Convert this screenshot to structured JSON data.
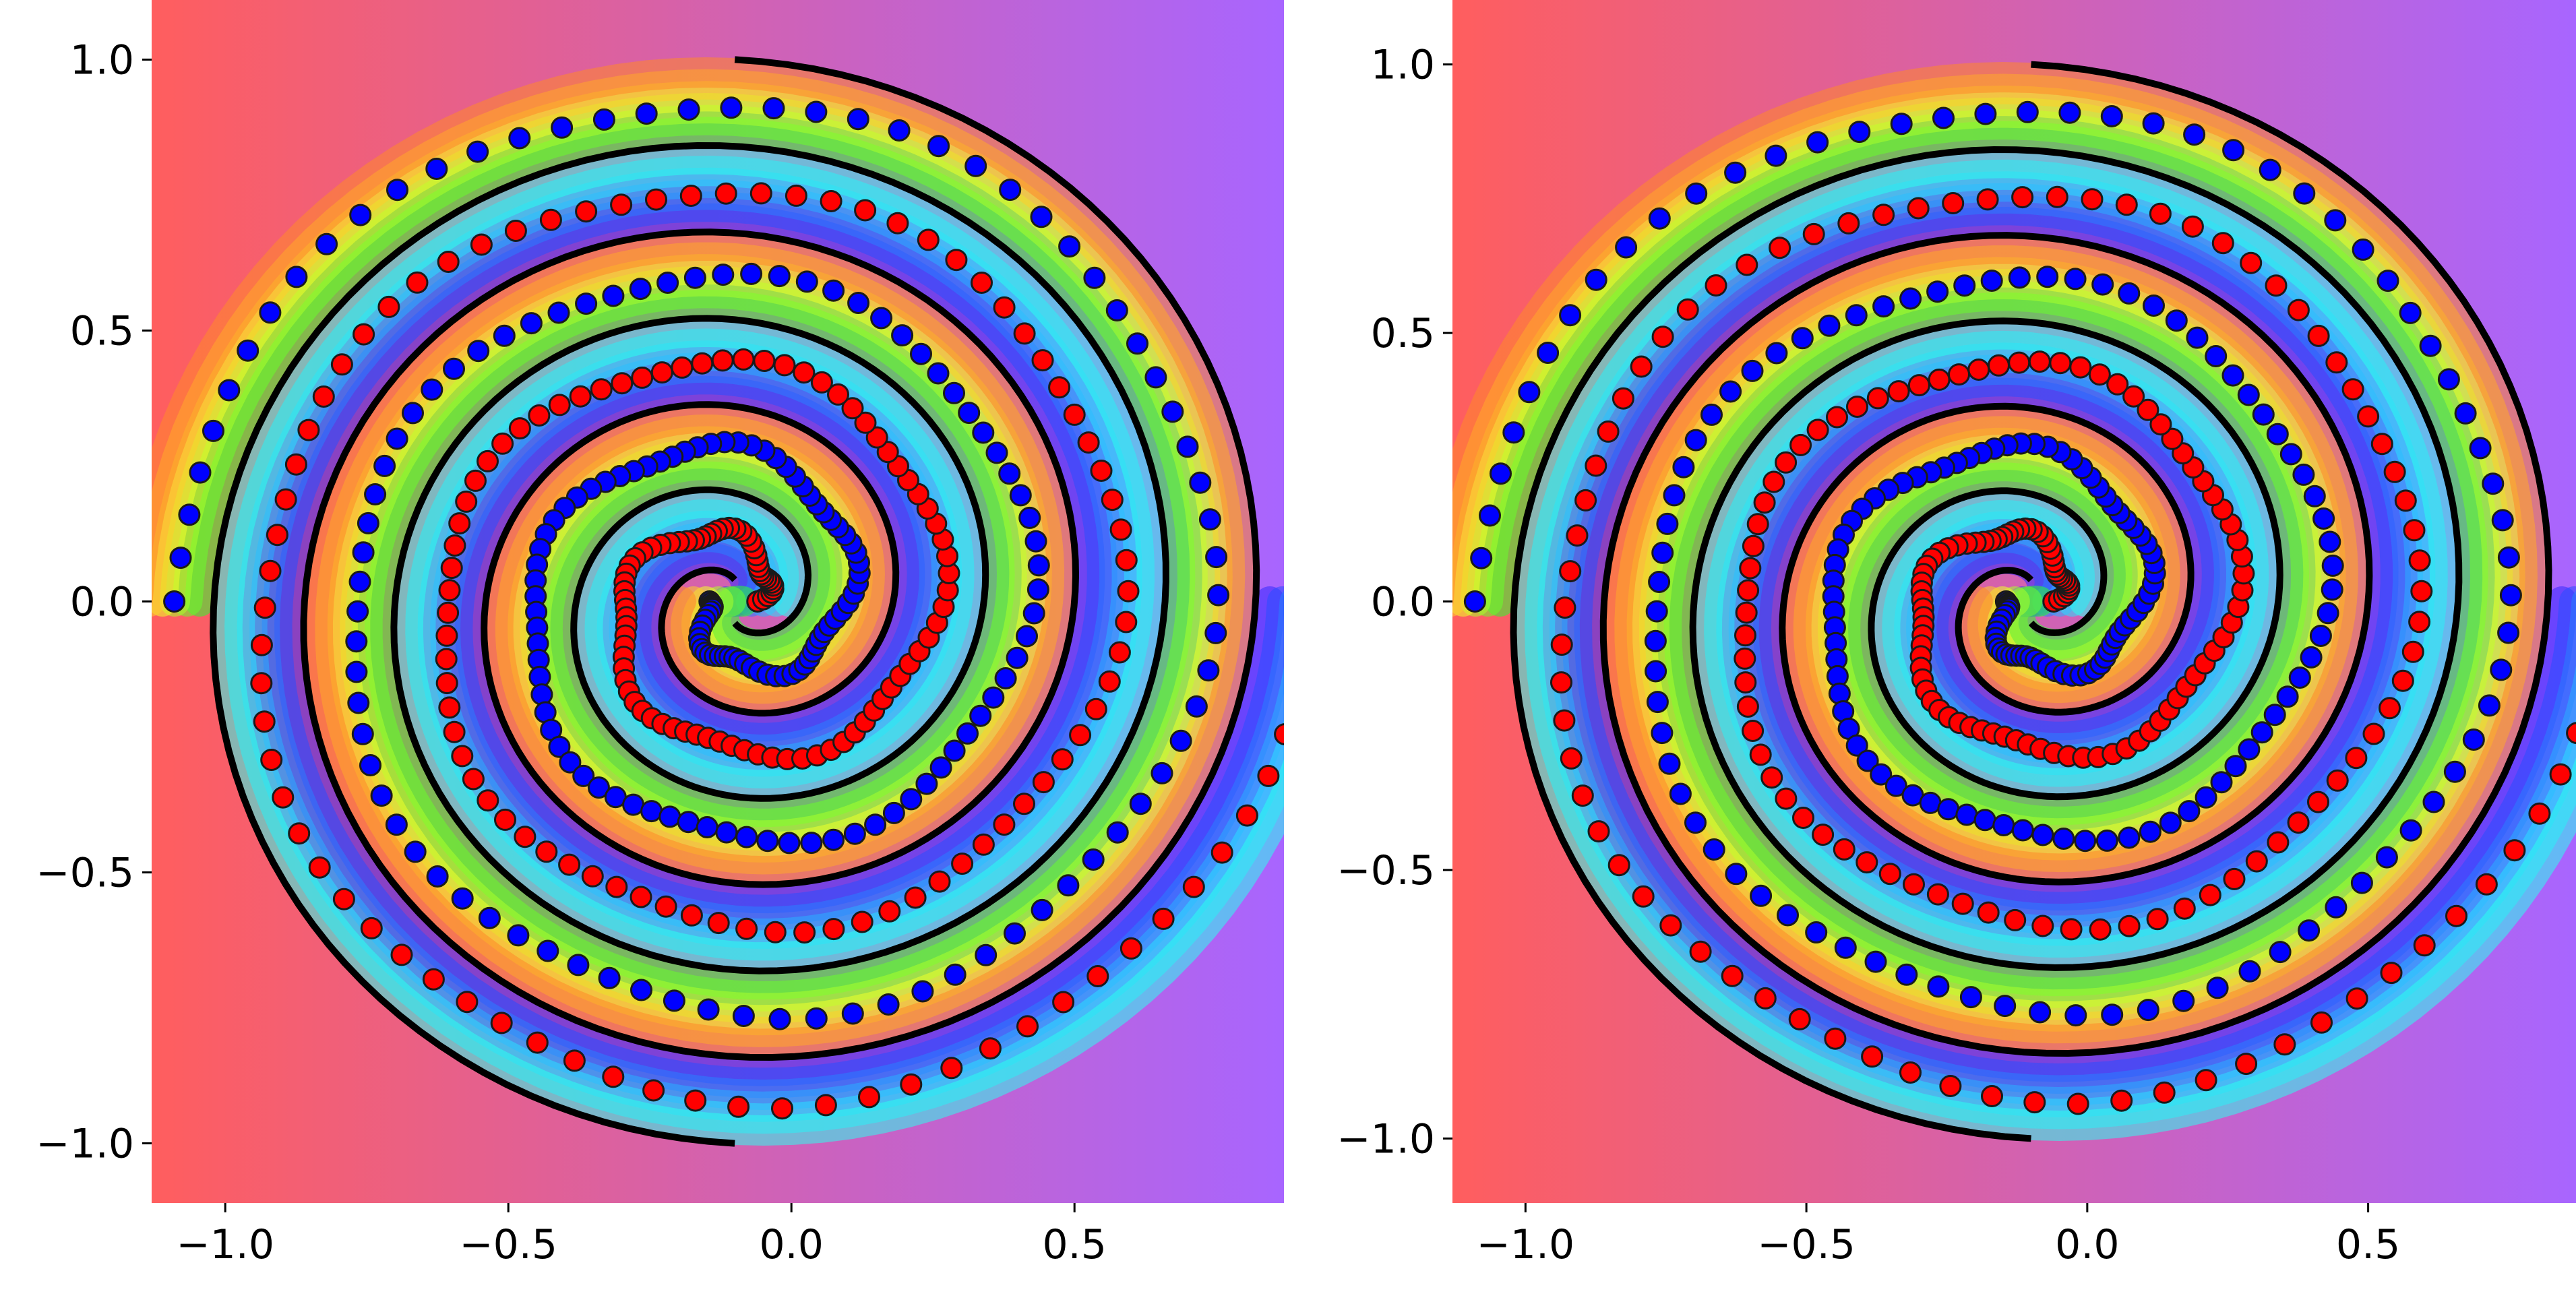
{
  "colors": {
    "class0": "#ff0000",
    "class1": "#0000ff",
    "point_edge": "#1a1a1a",
    "boundary": "#000000",
    "region_red": "#ff5e5e",
    "region_purple": "#a865ff"
  },
  "chart_data": [
    {
      "type": "scatter",
      "title": "",
      "xlabel": "",
      "ylabel": "",
      "xlim": [
        -1.13,
        0.87
      ],
      "ylim": [
        -1.11,
        1.11
      ],
      "x_ticks": [
        -1.0,
        -0.5,
        0.0,
        0.5
      ],
      "x_tick_labels": [
        "−1.0",
        "−0.5",
        "0.0",
        "0.5"
      ],
      "y_ticks": [
        -1.0,
        -0.5,
        0.0,
        0.5,
        1.0
      ],
      "y_tick_labels": [
        "−1.0",
        "−0.5",
        "0.0",
        "0.5",
        "1.0"
      ],
      "background": "decision-function contour (rainbow colormap) with black decision boundary",
      "grid": false,
      "series": [
        {
          "values": [],
          "points_desc": "two interleaved spirals"
        },
        {
          "values": []
        }
      ],
      "spiral": {
        "r0": 0.04,
        "r1": 1.0,
        "theta_span_deg": 1080,
        "center": [
          -0.1,
          0.0
        ]
      }
    },
    {
      "type": "scatter",
      "title": "",
      "xlabel": "",
      "ylabel": "",
      "xlim": [
        -1.13,
        0.87
      ],
      "ylim": [
        -1.12,
        1.12
      ],
      "x_ticks": [
        -1.0,
        -0.5,
        0.0,
        0.5
      ],
      "x_tick_labels": [
        "−1.0",
        "−0.5",
        "0.0",
        "0.5"
      ],
      "y_ticks": [
        -1.0,
        -0.5,
        0.0,
        0.5,
        1.0
      ],
      "y_tick_labels": [
        "−1.0",
        "−0.5",
        "0.0",
        "0.5",
        "1.0"
      ],
      "grid": false,
      "spiral": {
        "r0": 0.04,
        "r1": 1.0,
        "theta_span_deg": 1080,
        "center": [
          -0.1,
          0.0
        ]
      }
    }
  ]
}
